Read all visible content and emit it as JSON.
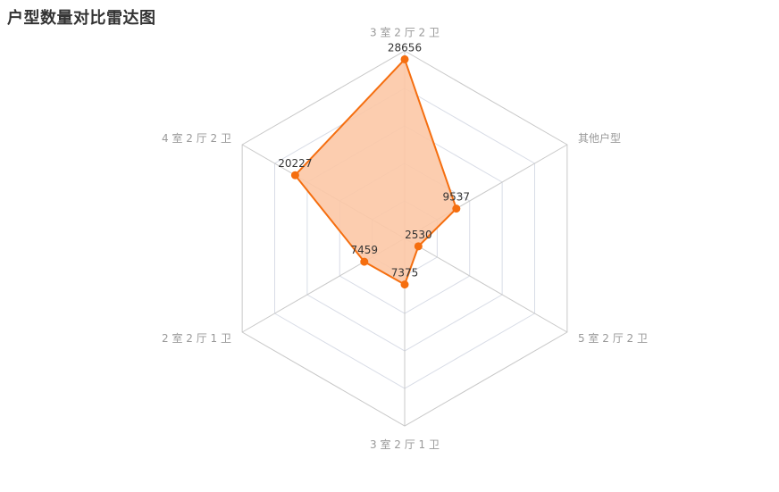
{
  "chart_data": {
    "type": "radar",
    "title": "户型数量对比雷达图",
    "max": 30000,
    "rings": 5,
    "indicators": [
      "3 室 2 厅 2 卫",
      "其他户型",
      "5 室 2 厅 2 卫",
      "3 室 2 厅 1 卫",
      "2 室 2 厅 1 卫",
      "4 室 2 厅 2 卫"
    ],
    "series": [
      {
        "values": [
          28656,
          9537,
          2530,
          7375,
          7459,
          20227
        ]
      }
    ],
    "colors": {
      "line": "#f56e0f",
      "area": "#fcc8a6",
      "grid": "#d8dce6",
      "spoke": "#c8c8c8"
    }
  }
}
